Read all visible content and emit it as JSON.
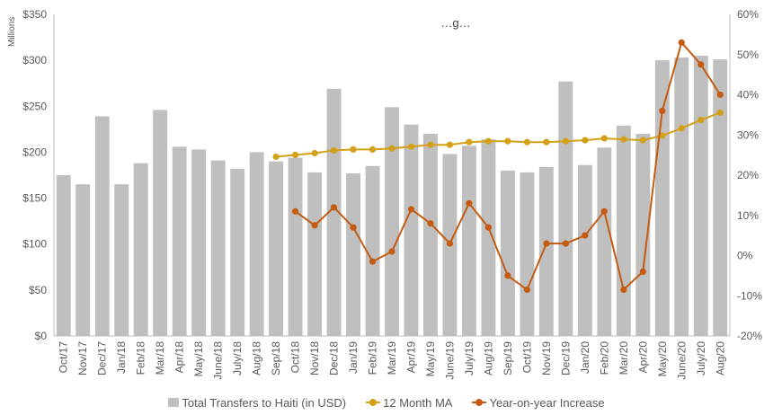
{
  "chart_data": {
    "type": "bar",
    "title": "…g…",
    "y_unit_label": "Millions",
    "categories": [
      "Oct/17",
      "Nov/17",
      "Dec/17",
      "Jan/18",
      "Feb/18",
      "Mar/18",
      "Apr/18",
      "May/18",
      "June/18",
      "July/18",
      "Aug/18",
      "Sep/18",
      "Oct/18",
      "Nov/18",
      "Dec/18",
      "Jan/19",
      "Feb/19",
      "Mar/19",
      "Apr/19",
      "May/19",
      "June/19",
      "July/19",
      "Aug/19",
      "Sep/19",
      "Oct/19",
      "Nov/19",
      "Dec/19",
      "Jan/20",
      "Feb/20",
      "Mar/20",
      "Apr/20",
      "May/20",
      "June/20",
      "July/20",
      "Aug/20"
    ],
    "y_left": {
      "ticks": [
        "$0",
        "$50",
        "$100",
        "$150",
        "$200",
        "$250",
        "$300",
        "$350"
      ],
      "range": [
        0,
        350
      ]
    },
    "y_right": {
      "ticks": [
        "-20%",
        "-10%",
        "0%",
        "10%",
        "20%",
        "30%",
        "40%",
        "50%",
        "60%"
      ],
      "range": [
        -20,
        60
      ]
    },
    "series": [
      {
        "name": "Total Transfers to Haiti (in USD)",
        "kind": "bar",
        "axis": "left",
        "color": "#bfbfbf",
        "values": [
          175,
          165,
          239,
          165,
          188,
          246,
          206,
          203,
          191,
          182,
          200,
          190,
          194,
          178,
          269,
          177,
          185,
          249,
          230,
          220,
          198,
          207,
          214,
          180,
          178,
          184,
          277,
          186,
          205,
          229,
          220,
          300,
          303,
          305,
          301
        ]
      },
      {
        "name": "12 Month MA",
        "kind": "line",
        "axis": "left",
        "color": "#d4a017",
        "values": [
          null,
          null,
          null,
          null,
          null,
          null,
          null,
          null,
          null,
          null,
          null,
          195,
          197,
          199,
          202,
          203,
          203,
          204,
          206,
          208,
          208,
          211,
          212,
          212,
          211,
          211,
          212,
          213,
          215,
          214,
          213,
          218,
          226,
          235,
          243
        ]
      },
      {
        "name": "Year-on-year Increase",
        "kind": "line",
        "axis": "right",
        "color": "#c55a11",
        "values": [
          null,
          null,
          null,
          null,
          null,
          null,
          null,
          null,
          null,
          null,
          null,
          null,
          11,
          7.5,
          12,
          7,
          -1.5,
          1,
          11.5,
          8,
          3,
          13,
          7,
          -5,
          -8.5,
          3,
          3,
          5,
          11,
          -8.5,
          -4,
          36,
          53,
          47.5,
          40
        ]
      }
    ],
    "legend_position": "bottom",
    "grid": false
  }
}
